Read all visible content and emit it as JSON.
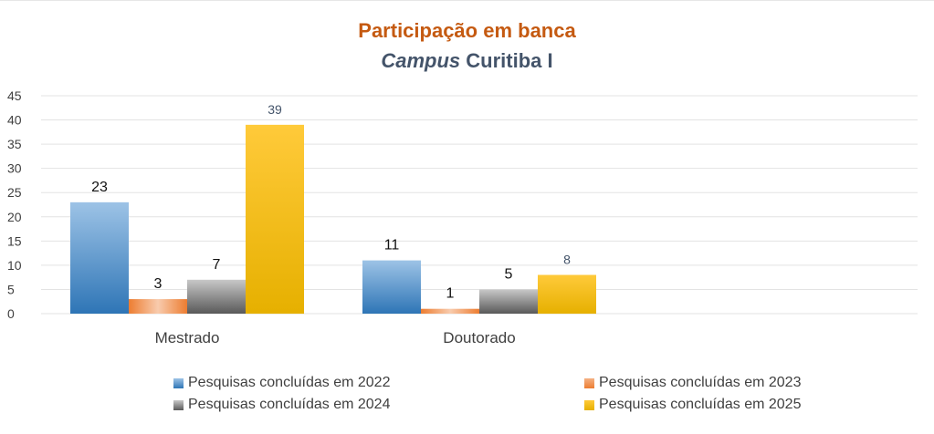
{
  "chart_data": {
    "type": "bar",
    "title": "Participação em banca",
    "subtitle_italic": "Campus",
    "subtitle_rest": "Curitiba I",
    "categories": [
      "Mestrado",
      "Doutorado",
      ""
    ],
    "series": [
      {
        "name": "Pesquisas concluídas em 2022",
        "values": [
          23,
          11,
          null
        ],
        "color": "#5b9bd5"
      },
      {
        "name": "Pesquisas concluídas em 2023",
        "values": [
          3,
          1,
          null
        ],
        "color": "#ed7d31"
      },
      {
        "name": "Pesquisas concluídas em 2024",
        "values": [
          7,
          5,
          null
        ],
        "color": "#7f7f7f"
      },
      {
        "name": "Pesquisas concluídas em 2025",
        "values": [
          39,
          8,
          null
        ],
        "color": "#ffc000"
      }
    ],
    "ylim": [
      0,
      45
    ],
    "yticks": [
      0,
      5,
      10,
      15,
      20,
      25,
      30,
      35,
      40,
      45
    ],
    "grid": true,
    "legend": "bottom",
    "xlabel": "",
    "ylabel": ""
  }
}
